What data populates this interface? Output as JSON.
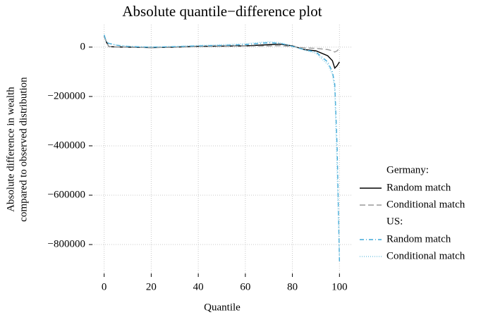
{
  "chart_data": {
    "type": "line",
    "title": "Absolute quantile−difference plot",
    "xlabel": "Quantile",
    "ylabel": [
      "Absolute difference in wealth",
      "compared to observed distribution"
    ],
    "x": [
      0,
      1,
      2,
      5,
      10,
      15,
      20,
      30,
      40,
      50,
      60,
      70,
      75,
      80,
      85,
      90,
      95,
      97,
      98,
      99,
      100
    ],
    "series_groups": [
      {
        "name": "Germany:",
        "series": [
          {
            "name": "Random match",
            "color": "#000000",
            "style": "solid",
            "values": [
              45000,
              20000,
              2000,
              1000,
              0,
              -1000,
              -2000,
              0,
              3000,
              4000,
              5000,
              10000,
              12000,
              5000,
              -10000,
              -15000,
              -35000,
              -55000,
              -85000,
              -75000,
              -60000
            ]
          },
          {
            "name": "Conditional match",
            "color": "#999999",
            "style": "dashed",
            "values": [
              45000,
              20000,
              2000,
              1000,
              0,
              -1000,
              -2000,
              0,
              2000,
              3000,
              4000,
              5000,
              6000,
              2000,
              -3000,
              -5000,
              -10000,
              -15000,
              -20000,
              -15000,
              -5000
            ]
          }
        ]
      },
      {
        "name": "US:",
        "series": [
          {
            "name": "Random match",
            "color": "#3ea8d8",
            "style": "dashdot",
            "values": [
              50000,
              20000,
              15000,
              8000,
              3000,
              1000,
              0,
              2000,
              5000,
              7000,
              10000,
              18000,
              15000,
              3000,
              -10000,
              -20000,
              -60000,
              -100000,
              -150000,
              -400000,
              -870000
            ]
          },
          {
            "name": "Conditional match",
            "color": "#7ec8e3",
            "style": "dotted",
            "values": [
              50000,
              22000,
              16000,
              9000,
              4000,
              2000,
              1000,
              3000,
              7000,
              10000,
              14000,
              22000,
              18000,
              4000,
              -12000,
              -25000,
              -70000,
              -110000,
              -170000,
              -500000,
              -860000
            ]
          }
        ]
      }
    ],
    "xlim": [
      -5,
      105
    ],
    "xticks": [
      0,
      20,
      40,
      60,
      80,
      100
    ],
    "ylim": [
      -917000,
      91000
    ],
    "yticks": [
      {
        "value": 0,
        "label": "0"
      },
      {
        "value": -200000,
        "label": "−200000"
      },
      {
        "value": -400000,
        "label": "−400000"
      },
      {
        "value": -600000,
        "label": "−600000"
      },
      {
        "value": -800000,
        "label": "−800000"
      }
    ],
    "grid": true,
    "legend": "right"
  }
}
